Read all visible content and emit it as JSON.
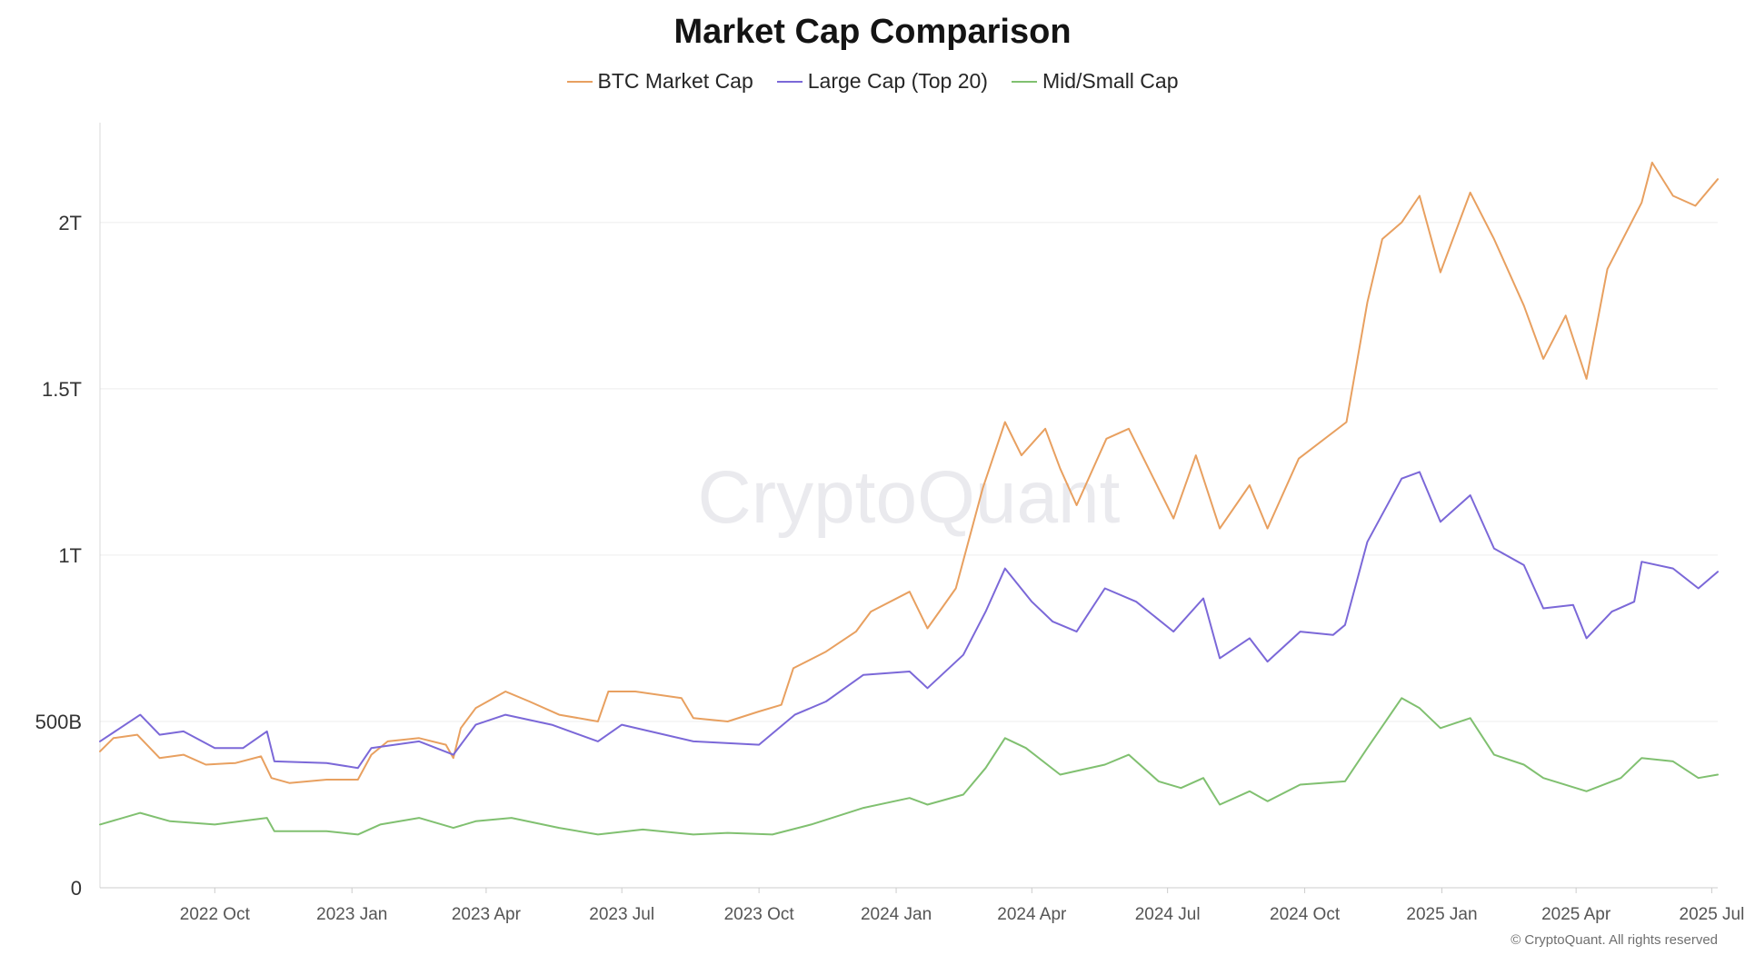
{
  "chart_data": {
    "type": "line",
    "title": "Market Cap Comparison",
    "legend_position": "top-center",
    "grid": true,
    "x_range": [
      "2022-07-16",
      "2025-07-05"
    ],
    "y_range": [
      0,
      2300000000000
    ],
    "y_ticks": [
      {
        "value": 0,
        "label": "0"
      },
      {
        "value": 500000000000,
        "label": "500B"
      },
      {
        "value": 1000000000000,
        "label": "1T"
      },
      {
        "value": 1500000000000,
        "label": "1.5T"
      },
      {
        "value": 2000000000000,
        "label": "2T"
      }
    ],
    "x_ticks": [
      {
        "date": "2022-10-01",
        "label": "2022 Oct"
      },
      {
        "date": "2023-01-01",
        "label": "2023 Jan"
      },
      {
        "date": "2023-04-01",
        "label": "2023 Apr"
      },
      {
        "date": "2023-07-01",
        "label": "2023 Jul"
      },
      {
        "date": "2023-10-01",
        "label": "2023 Oct"
      },
      {
        "date": "2024-01-01",
        "label": "2024 Jan"
      },
      {
        "date": "2024-04-01",
        "label": "2024 Apr"
      },
      {
        "date": "2024-07-01",
        "label": "2024 Jul"
      },
      {
        "date": "2024-10-01",
        "label": "2024 Oct"
      },
      {
        "date": "2025-01-01",
        "label": "2025 Jan"
      },
      {
        "date": "2025-04-01",
        "label": "2025 Apr"
      },
      {
        "date": "2025-07-01",
        "label": "2025 Jul"
      }
    ],
    "unit": "USD",
    "series": [
      {
        "name": "BTC Market Cap",
        "color": "#e8a060",
        "points": [
          [
            "2022-07-16",
            410000000000
          ],
          [
            "2022-07-25",
            450000000000
          ],
          [
            "2022-08-10",
            460000000000
          ],
          [
            "2022-08-25",
            390000000000
          ],
          [
            "2022-09-10",
            400000000000
          ],
          [
            "2022-09-25",
            370000000000
          ],
          [
            "2022-10-15",
            375000000000
          ],
          [
            "2022-11-01",
            395000000000
          ],
          [
            "2022-11-08",
            330000000000
          ],
          [
            "2022-11-20",
            315000000000
          ],
          [
            "2022-12-15",
            325000000000
          ],
          [
            "2023-01-05",
            325000000000
          ],
          [
            "2023-01-14",
            400000000000
          ],
          [
            "2023-01-25",
            440000000000
          ],
          [
            "2023-02-15",
            450000000000
          ],
          [
            "2023-03-05",
            430000000000
          ],
          [
            "2023-03-10",
            390000000000
          ],
          [
            "2023-03-15",
            480000000000
          ],
          [
            "2023-03-25",
            540000000000
          ],
          [
            "2023-04-14",
            590000000000
          ],
          [
            "2023-04-30",
            560000000000
          ],
          [
            "2023-05-20",
            520000000000
          ],
          [
            "2023-06-15",
            500000000000
          ],
          [
            "2023-06-22",
            590000000000
          ],
          [
            "2023-07-10",
            590000000000
          ],
          [
            "2023-08-10",
            570000000000
          ],
          [
            "2023-08-18",
            510000000000
          ],
          [
            "2023-09-10",
            500000000000
          ],
          [
            "2023-10-01",
            530000000000
          ],
          [
            "2023-10-16",
            550000000000
          ],
          [
            "2023-10-24",
            660000000000
          ],
          [
            "2023-11-15",
            710000000000
          ],
          [
            "2023-12-05",
            770000000000
          ],
          [
            "2023-12-15",
            830000000000
          ],
          [
            "2024-01-10",
            890000000000
          ],
          [
            "2024-01-22",
            780000000000
          ],
          [
            "2024-02-10",
            900000000000
          ],
          [
            "2024-02-28",
            1200000000000
          ],
          [
            "2024-03-14",
            1400000000000
          ],
          [
            "2024-03-25",
            1300000000000
          ],
          [
            "2024-04-10",
            1380000000000
          ],
          [
            "2024-04-20",
            1260000000000
          ],
          [
            "2024-05-01",
            1150000000000
          ],
          [
            "2024-05-21",
            1350000000000
          ],
          [
            "2024-06-05",
            1380000000000
          ],
          [
            "2024-06-25",
            1200000000000
          ],
          [
            "2024-07-05",
            1110000000000
          ],
          [
            "2024-07-20",
            1300000000000
          ],
          [
            "2024-08-05",
            1080000000000
          ],
          [
            "2024-08-25",
            1210000000000
          ],
          [
            "2024-09-06",
            1080000000000
          ],
          [
            "2024-09-27",
            1290000000000
          ],
          [
            "2024-10-29",
            1400000000000
          ],
          [
            "2024-11-12",
            1760000000000
          ],
          [
            "2024-11-22",
            1950000000000
          ],
          [
            "2024-12-05",
            2000000000000
          ],
          [
            "2024-12-17",
            2080000000000
          ],
          [
            "2024-12-31",
            1850000000000
          ],
          [
            "2025-01-20",
            2090000000000
          ],
          [
            "2025-02-05",
            1950000000000
          ],
          [
            "2025-02-25",
            1750000000000
          ],
          [
            "2025-03-10",
            1590000000000
          ],
          [
            "2025-03-25",
            1720000000000
          ],
          [
            "2025-04-08",
            1530000000000
          ],
          [
            "2025-04-22",
            1860000000000
          ],
          [
            "2025-05-15",
            2060000000000
          ],
          [
            "2025-05-22",
            2180000000000
          ],
          [
            "2025-06-05",
            2080000000000
          ],
          [
            "2025-06-20",
            2050000000000
          ],
          [
            "2025-07-05",
            2130000000000
          ]
        ]
      },
      {
        "name": "Large Cap (Top 20)",
        "color": "#7b68d8",
        "points": [
          [
            "2022-07-16",
            440000000000
          ],
          [
            "2022-08-12",
            520000000000
          ],
          [
            "2022-08-25",
            460000000000
          ],
          [
            "2022-09-10",
            470000000000
          ],
          [
            "2022-10-01",
            420000000000
          ],
          [
            "2022-10-20",
            420000000000
          ],
          [
            "2022-11-05",
            470000000000
          ],
          [
            "2022-11-10",
            380000000000
          ],
          [
            "2022-12-15",
            375000000000
          ],
          [
            "2023-01-05",
            360000000000
          ],
          [
            "2023-01-14",
            420000000000
          ],
          [
            "2023-02-15",
            440000000000
          ],
          [
            "2023-03-10",
            400000000000
          ],
          [
            "2023-03-25",
            490000000000
          ],
          [
            "2023-04-14",
            520000000000
          ],
          [
            "2023-05-15",
            490000000000
          ],
          [
            "2023-06-15",
            440000000000
          ],
          [
            "2023-07-01",
            490000000000
          ],
          [
            "2023-08-18",
            440000000000
          ],
          [
            "2023-10-01",
            430000000000
          ],
          [
            "2023-10-25",
            520000000000
          ],
          [
            "2023-11-15",
            560000000000
          ],
          [
            "2023-12-10",
            640000000000
          ],
          [
            "2024-01-10",
            650000000000
          ],
          [
            "2024-01-22",
            600000000000
          ],
          [
            "2024-02-15",
            700000000000
          ],
          [
            "2024-03-01",
            830000000000
          ],
          [
            "2024-03-14",
            960000000000
          ],
          [
            "2024-04-01",
            860000000000
          ],
          [
            "2024-04-15",
            800000000000
          ],
          [
            "2024-05-01",
            770000000000
          ],
          [
            "2024-05-20",
            900000000000
          ],
          [
            "2024-06-10",
            860000000000
          ],
          [
            "2024-07-05",
            770000000000
          ],
          [
            "2024-07-25",
            870000000000
          ],
          [
            "2024-08-05",
            690000000000
          ],
          [
            "2024-08-25",
            750000000000
          ],
          [
            "2024-09-06",
            680000000000
          ],
          [
            "2024-09-28",
            770000000000
          ],
          [
            "2024-10-20",
            760000000000
          ],
          [
            "2024-10-28",
            790000000000
          ],
          [
            "2024-11-12",
            1040000000000
          ],
          [
            "2024-12-05",
            1230000000000
          ],
          [
            "2024-12-17",
            1250000000000
          ],
          [
            "2024-12-31",
            1100000000000
          ],
          [
            "2025-01-20",
            1180000000000
          ],
          [
            "2025-02-05",
            1020000000000
          ],
          [
            "2025-02-25",
            970000000000
          ],
          [
            "2025-03-10",
            840000000000
          ],
          [
            "2025-03-30",
            850000000000
          ],
          [
            "2025-04-08",
            750000000000
          ],
          [
            "2025-04-25",
            830000000000
          ],
          [
            "2025-05-10",
            860000000000
          ],
          [
            "2025-05-15",
            980000000000
          ],
          [
            "2025-06-05",
            960000000000
          ],
          [
            "2025-06-22",
            900000000000
          ],
          [
            "2025-07-05",
            950000000000
          ]
        ]
      },
      {
        "name": "Mid/Small Cap",
        "color": "#80c070",
        "points": [
          [
            "2022-07-16",
            190000000000
          ],
          [
            "2022-08-12",
            225000000000
          ],
          [
            "2022-09-01",
            200000000000
          ],
          [
            "2022-10-01",
            190000000000
          ],
          [
            "2022-11-05",
            210000000000
          ],
          [
            "2022-11-10",
            170000000000
          ],
          [
            "2022-12-15",
            170000000000
          ],
          [
            "2023-01-05",
            160000000000
          ],
          [
            "2023-01-20",
            190000000000
          ],
          [
            "2023-02-15",
            210000000000
          ],
          [
            "2023-03-10",
            180000000000
          ],
          [
            "2023-03-25",
            200000000000
          ],
          [
            "2023-04-18",
            210000000000
          ],
          [
            "2023-05-20",
            180000000000
          ],
          [
            "2023-06-15",
            160000000000
          ],
          [
            "2023-07-15",
            175000000000
          ],
          [
            "2023-08-18",
            160000000000
          ],
          [
            "2023-09-10",
            165000000000
          ],
          [
            "2023-10-10",
            160000000000
          ],
          [
            "2023-11-05",
            190000000000
          ],
          [
            "2023-12-10",
            240000000000
          ],
          [
            "2024-01-10",
            270000000000
          ],
          [
            "2024-01-22",
            250000000000
          ],
          [
            "2024-02-15",
            280000000000
          ],
          [
            "2024-03-01",
            360000000000
          ],
          [
            "2024-03-14",
            450000000000
          ],
          [
            "2024-03-28",
            420000000000
          ],
          [
            "2024-04-20",
            340000000000
          ],
          [
            "2024-05-20",
            370000000000
          ],
          [
            "2024-06-05",
            400000000000
          ],
          [
            "2024-06-25",
            320000000000
          ],
          [
            "2024-07-10",
            300000000000
          ],
          [
            "2024-07-25",
            330000000000
          ],
          [
            "2024-08-05",
            250000000000
          ],
          [
            "2024-08-25",
            290000000000
          ],
          [
            "2024-09-06",
            260000000000
          ],
          [
            "2024-09-28",
            310000000000
          ],
          [
            "2024-10-28",
            320000000000
          ],
          [
            "2024-11-12",
            420000000000
          ],
          [
            "2024-12-05",
            570000000000
          ],
          [
            "2024-12-17",
            540000000000
          ],
          [
            "2024-12-31",
            480000000000
          ],
          [
            "2025-01-20",
            510000000000
          ],
          [
            "2025-02-05",
            400000000000
          ],
          [
            "2025-02-25",
            370000000000
          ],
          [
            "2025-03-10",
            330000000000
          ],
          [
            "2025-04-08",
            290000000000
          ],
          [
            "2025-05-01",
            330000000000
          ],
          [
            "2025-05-15",
            390000000000
          ],
          [
            "2025-06-05",
            380000000000
          ],
          [
            "2025-06-22",
            330000000000
          ],
          [
            "2025-07-05",
            340000000000
          ]
        ]
      }
    ]
  },
  "watermark": "CryptoQuant",
  "footer": {
    "copyright": "© CryptoQuant. All rights reserved"
  }
}
